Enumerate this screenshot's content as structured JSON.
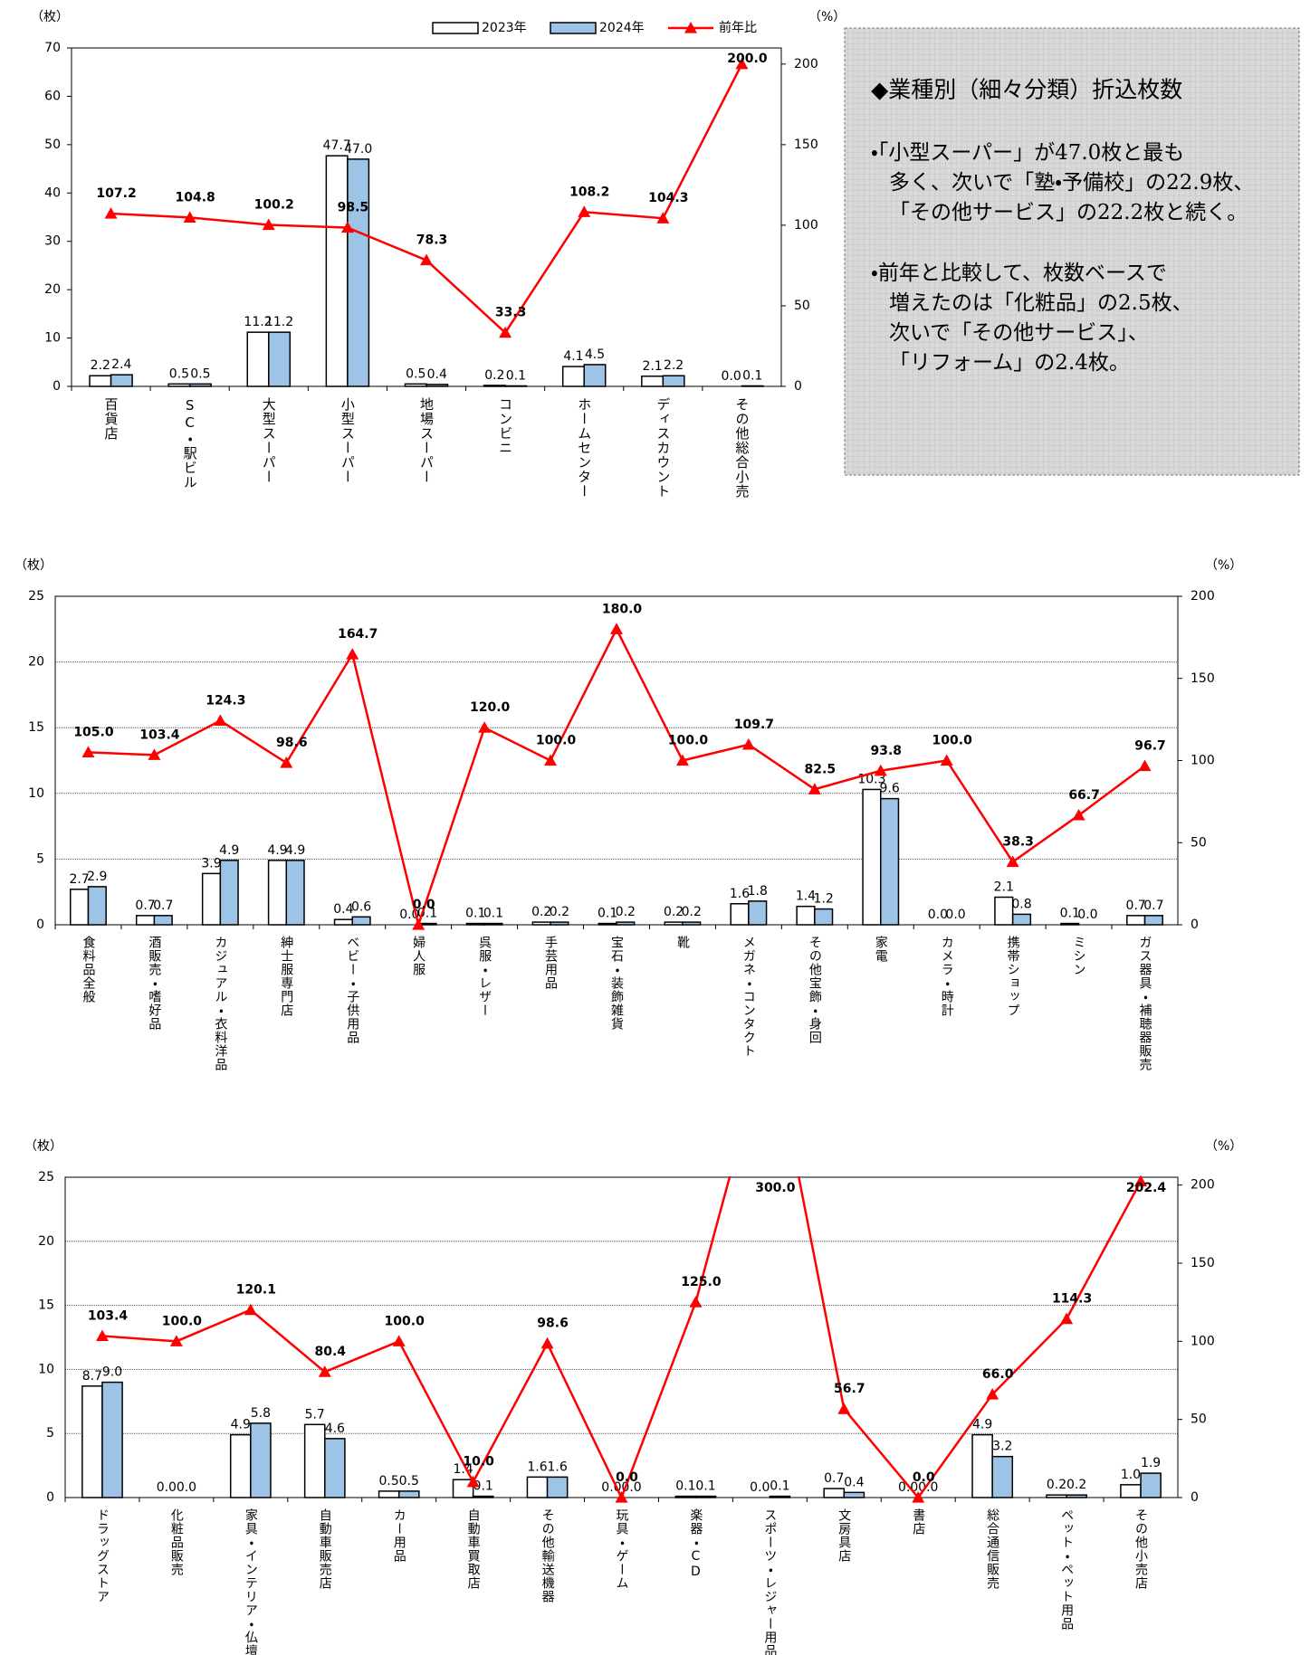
{
  "chart_data": [
    {
      "type": "bar",
      "y_label": "（枚）",
      "y2_label": "（%）",
      "categories": [
        "百貨店",
        "SC・駅ビル",
        "大型スーパー",
        "小型スーパー",
        "地場スーパー",
        "コンビニ",
        "ホームセンター",
        "ディスカウント",
        "その他総合小売"
      ],
      "series": [
        {
          "name": "2023年",
          "color": "#ffffff",
          "values": [
            2.2,
            0.5,
            11.2,
            47.7,
            0.5,
            0.2,
            4.1,
            2.1,
            0
          ],
          "value_labels": [
            "2.2",
            "0.5",
            "11.2",
            "47.7",
            "0.5",
            "0.2",
            "4.1",
            "2.1",
            "0.0"
          ]
        },
        {
          "name": "2024年",
          "color": "#9dc3e6",
          "values": [
            2.4,
            0.5,
            11.2,
            47,
            0.4,
            0.1,
            4.5,
            2.2,
            0.1
          ],
          "value_labels": [
            "2.4",
            "0.5",
            "11.2",
            "47.0",
            "0.4",
            "0.1",
            "4.5",
            "2.2",
            "0.1"
          ]
        },
        {
          "name": "前年比",
          "color": "#ff0000",
          "type": "line",
          "axis": "y2",
          "values": [
            107.2,
            104.8,
            100.2,
            98.5,
            78.3,
            33.3,
            108.2,
            104.3,
            200
          ],
          "value_labels": [
            "107.2",
            "104.8",
            "100.2",
            "98.5",
            "78.3",
            "33.3",
            "108.2",
            "104.3",
            "200.0"
          ]
        }
      ],
      "ylim": [
        0,
        70
      ],
      "yticks": [
        0,
        10,
        20,
        30,
        40,
        50,
        60,
        70
      ],
      "y2lim": [
        0,
        210
      ],
      "y2ticks": [
        0,
        50,
        100,
        150,
        200
      ],
      "grid": false,
      "legend": "top"
    },
    {
      "type": "bar",
      "y_label": "（枚）",
      "y2_label": "（%）",
      "categories": [
        "食料品全般",
        "酒販売・嗜好品",
        "カジュアル・衣料洋品",
        "紳士服専門店",
        "ベビー・子供用品",
        "婦人服",
        "呉服・レザー",
        "手芸用品",
        "宝石・装飾雑貨",
        "靴",
        "メガネ・コンタクト",
        "その他宝飾・身回",
        "家電",
        "カメラ・時計",
        "携帯ショップ",
        "ミシン",
        "ガス器具・補聴器販売"
      ],
      "series": [
        {
          "name": "2023年",
          "color": "#ffffff",
          "values": [
            2.7,
            0.7,
            3.9,
            4.9,
            0.4,
            0,
            0.1,
            0.2,
            0.1,
            0.2,
            1.6,
            1.4,
            10.3,
            0,
            2.1,
            0.1,
            0.7
          ],
          "value_labels": [
            "2.7",
            "0.7",
            "3.9",
            "4.9",
            "0.4",
            "0.0",
            "0.1",
            "0.2",
            "0.1",
            "0.2",
            "1.6",
            "1.4",
            "10.3",
            "0.0",
            "2.1",
            "0.1",
            "0.7"
          ]
        },
        {
          "name": "2024年",
          "color": "#9dc3e6",
          "values": [
            2.9,
            0.7,
            4.9,
            4.9,
            0.6,
            0.1,
            0.1,
            0.2,
            0.2,
            0.2,
            1.8,
            1.2,
            9.6,
            0,
            0.8,
            0,
            0.7
          ],
          "value_labels": [
            "2.9",
            "0.7",
            "4.9",
            "4.9",
            "0.6",
            "0.1",
            "0.1",
            "0.2",
            "0.2",
            "0.2",
            "1.8",
            "1.2",
            "9.6",
            "0.0",
            "0.8",
            "0.0",
            "0.7"
          ]
        },
        {
          "name": "前年比",
          "color": "#ff0000",
          "type": "line",
          "axis": "y2",
          "values": [
            105,
            103.4,
            124.3,
            98.6,
            164.7,
            0,
            120,
            100,
            180,
            100,
            109.7,
            82.5,
            93.8,
            100,
            38.3,
            66.7,
            96.7
          ],
          "value_labels": [
            "105.0",
            "103.4",
            "124.3",
            "98.6",
            "164.7",
            "0.0",
            "120.0",
            "100.0",
            "180.0",
            "100.0",
            "109.7",
            "82.5",
            "93.8",
            "100.0",
            "38.3",
            "66.7",
            "96.7"
          ]
        }
      ],
      "ylim": [
        0,
        25
      ],
      "yticks": [
        0,
        5,
        10,
        15,
        20,
        25
      ],
      "y2lim": [
        0,
        200
      ],
      "y2ticks": [
        0,
        50,
        100,
        150,
        200
      ],
      "grid": true
    },
    {
      "type": "bar",
      "y_label": "（枚）",
      "y2_label": "（%）",
      "categories": [
        "ドラッグストア",
        "化粧品販売",
        "家具・インテリア・仏壇",
        "自動車販売店",
        "カー用品",
        "自動車買取店",
        "その他輸送機器",
        "玩具・ゲーム",
        "楽器・CD",
        "スポーツ・レジャー用品",
        "文房具店",
        "書店",
        "総合通信販売",
        "ペット・ペット用品",
        "その他小売店"
      ],
      "series": [
        {
          "name": "2023年",
          "color": "#ffffff",
          "values": [
            8.7,
            0,
            4.9,
            5.7,
            0.5,
            1.4,
            1.6,
            0,
            0.1,
            0,
            0.7,
            0,
            4.9,
            0.2,
            1
          ],
          "value_labels": [
            "8.7",
            "0.0",
            "4.9",
            "5.7",
            "0.5",
            "1.4",
            "1.6",
            "0.0",
            "0.1",
            "0.0",
            "0.7",
            "0.0",
            "4.9",
            "0.2",
            "1.0"
          ]
        },
        {
          "name": "2024年",
          "color": "#9dc3e6",
          "values": [
            9,
            0,
            5.8,
            4.6,
            0.5,
            0.1,
            1.6,
            0,
            0.1,
            0.1,
            0.4,
            0,
            3.2,
            0.2,
            1.9
          ],
          "value_labels": [
            "9.0",
            "0.0",
            "5.8",
            "4.6",
            "0.5",
            "0.1",
            "1.6",
            "0.0",
            "0.1",
            "0.1",
            "0.4",
            "0.0",
            "3.2",
            "0.2",
            "1.9"
          ]
        },
        {
          "name": "前年比",
          "color": "#ff0000",
          "type": "line",
          "axis": "y2",
          "values": [
            103.4,
            100,
            120.1,
            80.4,
            100,
            10,
            98.6,
            0,
            125,
            300,
            56.7,
            0,
            66,
            114.3,
            202.4
          ],
          "value_labels": [
            "103.4",
            "100.0",
            "120.1",
            "80.4",
            "100.0",
            "10.0",
            "98.6",
            "0.0",
            "125.0",
            "300.0",
            "56.7",
            "0.0",
            "66.0",
            "114.3",
            "202.4"
          ]
        }
      ],
      "ylim": [
        0,
        25
      ],
      "yticks": [
        0,
        5,
        10,
        15,
        20,
        25
      ],
      "y2lim": [
        0,
        205
      ],
      "y2ticks": [
        0,
        50,
        100,
        150,
        200
      ],
      "grid": true
    }
  ],
  "textbox": {
    "title": "◆業種別（細々分類）折込枚数",
    "paragraphs": [
      [
        "・「小型スーパー」が47.0枚と最も",
        "多く、次いで「塾・予備校」の22.9枚、",
        "「その他サービス」の22.2枚と続く。"
      ],
      [
        "・前年と比較して、枚数ベースで",
        "増えたのは「化粧品」の2.5枚、",
        "次いで「その他サービス」、",
        "「リフォーム」の2.4枚。"
      ]
    ]
  }
}
